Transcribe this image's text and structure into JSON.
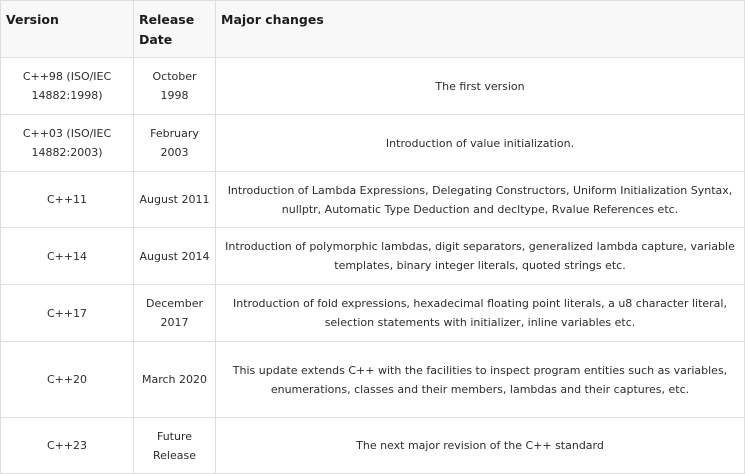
{
  "table": {
    "headers": {
      "version": "Version",
      "release_date": "Release Date",
      "major_changes": "Major changes"
    },
    "rows": [
      {
        "version": "C++98 (ISO/IEC 14882:1998)",
        "release_date": "October 1998",
        "changes": "The first version"
      },
      {
        "version": "C++03 (ISO/IEC 14882:2003)",
        "release_date": "February 2003",
        "changes": "Introduction of value initialization."
      },
      {
        "version": "C++11",
        "release_date": "August 2011",
        "changes": "Introduction of Lambda Expressions, Delegating Constructors, Uniform Initialization Syntax, nullptr, Automatic Type Deduction and decltype, Rvalue References etc."
      },
      {
        "version": "C++14",
        "release_date": "August 2014",
        "changes": "Introduction of polymorphic lambdas, digit separators, generalized lambda capture, variable templates, binary integer literals, quoted strings etc."
      },
      {
        "version": "C++17",
        "release_date": "December 2017",
        "changes": "Introduction of fold expressions, hexadecimal floating point literals, a u8 character literal, selection statements with initializer, inline variables etc."
      },
      {
        "version": "C++20",
        "release_date": "March 2020",
        "changes": "This update extends C++ with the facilities to inspect program entities such as variables, enumerations, classes and their members, lambdas and their captures, etc."
      },
      {
        "version": "C++23",
        "release_date": "Future Release",
        "changes": "The next major revision of the C++ standard"
      }
    ]
  }
}
